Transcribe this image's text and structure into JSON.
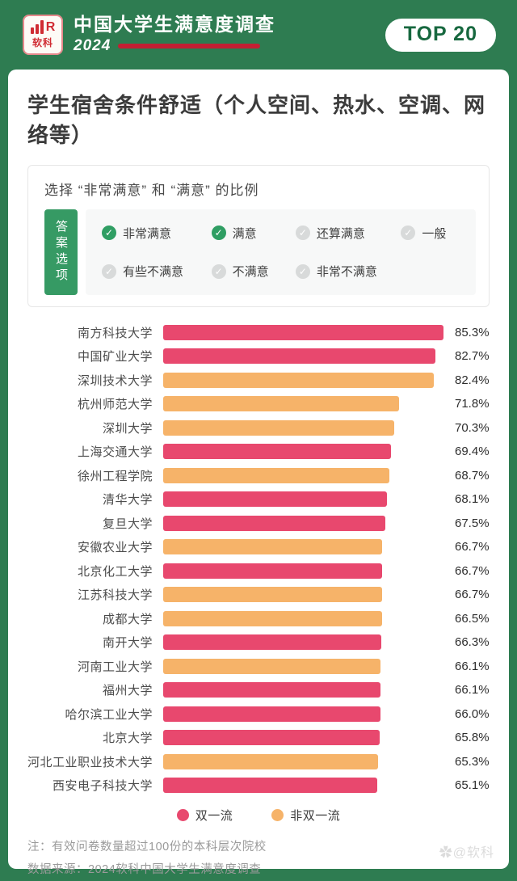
{
  "header": {
    "logo_brand": "软科",
    "title": "中国大学生满意度调查",
    "year": "2024",
    "badge": "TOP 20"
  },
  "card": {
    "title": "学生宿舍条件舒适（个人空间、热水、空调、网络等）",
    "options_box": {
      "subtitle": "选择 “非常满意” 和 “满意” 的比例",
      "tab_label": "答案选项",
      "options": [
        {
          "label": "非常满意",
          "checked": true
        },
        {
          "label": "满意",
          "checked": true
        },
        {
          "label": "还算满意",
          "checked": false
        },
        {
          "label": "一般",
          "checked": false
        },
        {
          "label": "有些不满意",
          "checked": false
        },
        {
          "label": "不满意",
          "checked": false
        },
        {
          "label": "非常不满意",
          "checked": false
        }
      ]
    }
  },
  "chart_data": {
    "type": "bar",
    "orientation": "horizontal",
    "title": "学生宿舍条件舒适（个人空间、热水、空调、网络等）",
    "xlabel": "",
    "ylabel": "",
    "value_suffix": "%",
    "xlim": [
      0,
      86.5
    ],
    "grid": false,
    "legend_position": "bottom",
    "categories": [
      "南方科技大学",
      "中国矿业大学",
      "深圳技术大学",
      "杭州师范大学",
      "深圳大学",
      "上海交通大学",
      "徐州工程学院",
      "清华大学",
      "复旦大学",
      "安徽农业大学",
      "北京化工大学",
      "江苏科技大学",
      "成都大学",
      "南开大学",
      "河南工业大学",
      "福州大学",
      "哈尔滨工业大学",
      "北京大学",
      "河北工业职业技术大学",
      "西安电子科技大学"
    ],
    "values": [
      85.3,
      82.7,
      82.4,
      71.8,
      70.3,
      69.4,
      68.7,
      68.1,
      67.5,
      66.7,
      66.7,
      66.7,
      66.5,
      66.3,
      66.1,
      66.1,
      66.0,
      65.8,
      65.3,
      65.1
    ],
    "group_by_bar": [
      "双一流",
      "双一流",
      "非双一流",
      "非双一流",
      "非双一流",
      "双一流",
      "非双一流",
      "双一流",
      "双一流",
      "非双一流",
      "双一流",
      "非双一流",
      "非双一流",
      "双一流",
      "非双一流",
      "双一流",
      "双一流",
      "双一流",
      "非双一流",
      "双一流"
    ],
    "legend": [
      {
        "label": "双一流",
        "color": "#e8486e"
      },
      {
        "label": "非双一流",
        "color": "#f6b369"
      }
    ]
  },
  "footer": {
    "note": "注：有效问卷数量超过100份的本科层次院校",
    "source": "数据来源：2024软科中国大学生满意度调查",
    "watermark_icon": "✿",
    "watermark": "@软科"
  },
  "colors": {
    "background_green": "#2e7c51",
    "badge_text_green": "#17683f",
    "brand_red": "#d02c33",
    "underline_red": "#c31f33",
    "check_green": "#2f9e63",
    "check_gray": "#d8dada",
    "bar_red": "#e8486e",
    "bar_orange": "#f6b369"
  }
}
